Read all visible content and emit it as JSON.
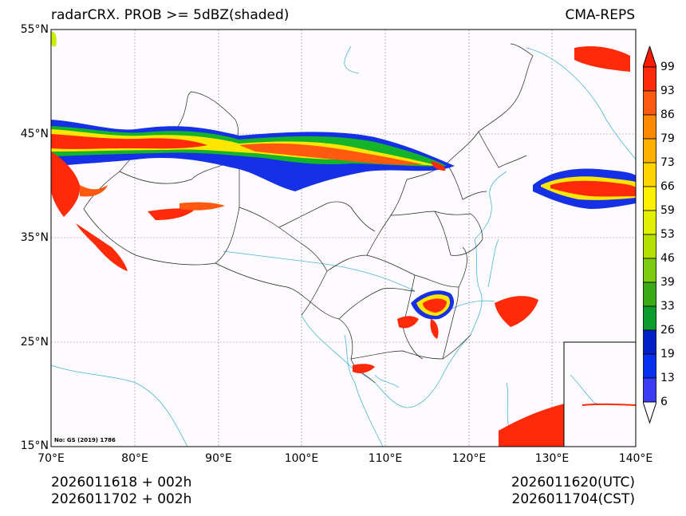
{
  "header": {
    "title_left": "radarCRX. PROB >= 5dBZ(shaded)",
    "title_right": "CMA-REPS"
  },
  "axes": {
    "lat_labels": [
      "55°N",
      "45°N",
      "35°N",
      "25°N",
      "15°N"
    ],
    "lon_labels": [
      "70°E",
      "80°E",
      "90°E",
      "100°E",
      "110°E",
      "120°E",
      "130°E",
      "140°E"
    ]
  },
  "map": {
    "approval_number": "No: GS (2019) 1786",
    "background_color": "#fdfbfd",
    "border_color": "#222222",
    "water_color": "#4ab3e0"
  },
  "colorbar": {
    "levels": [
      "99",
      "93",
      "86",
      "79",
      "73",
      "66",
      "59",
      "53",
      "46",
      "39",
      "33",
      "26",
      "19",
      "13",
      "6"
    ],
    "colors": [
      "#ff2a0a",
      "#ff5a10",
      "#ff8a00",
      "#ffb000",
      "#ffd500",
      "#fff000",
      "#e0f000",
      "#b4e000",
      "#7ccd12",
      "#3caa14",
      "#0c9c2c",
      "#0020c8",
      "#0830f0",
      "#3c3cf4",
      "#a8a8f8"
    ]
  },
  "footer": {
    "init_utc": "2026011618  +  002h",
    "init_cst": "2026011702  +  002h",
    "valid_utc": "2026011620(UTC)",
    "valid_cst": "2026011704(CST)"
  }
}
